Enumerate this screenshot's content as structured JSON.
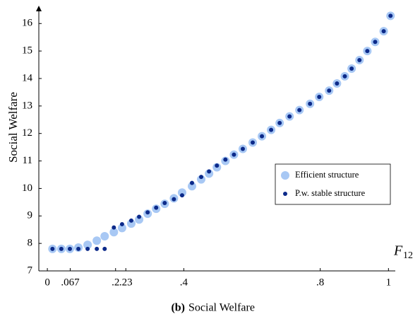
{
  "chart_data": {
    "type": "scatter",
    "x_label": "F",
    "x_label_sub": "12",
    "y_label": "Social Welfare",
    "caption_tag": "(b)",
    "caption": "Social Welfare",
    "xlim": [
      -0.025,
      1.02
    ],
    "ylim": [
      7,
      16.65
    ],
    "xticks": [
      {
        "value": 0,
        "label": "0"
      },
      {
        "value": 0.067,
        "label": ".067"
      },
      {
        "value": 0.2,
        "label": ".2"
      },
      {
        "value": 0.23,
        "label": ".23"
      },
      {
        "value": 0.4,
        "label": ".4"
      },
      {
        "value": 0.8,
        "label": ".8"
      },
      {
        "value": 1,
        "label": "1"
      }
    ],
    "yticks": [
      7,
      8,
      9,
      10,
      11,
      12,
      13,
      14,
      15,
      16
    ],
    "legend": "right",
    "series": [
      {
        "name": "Efficient structure",
        "color": "#a8c8f4",
        "size": 6,
        "x": [
          0.015,
          0.041,
          0.066,
          0.091,
          0.118,
          0.145,
          0.168,
          0.195,
          0.219,
          0.246,
          0.269,
          0.294,
          0.319,
          0.344,
          0.371,
          0.395,
          0.424,
          0.451,
          0.474,
          0.497,
          0.522,
          0.547,
          0.573,
          0.602,
          0.629,
          0.656,
          0.681,
          0.71,
          0.739,
          0.77,
          0.797,
          0.826,
          0.849,
          0.872,
          0.892,
          0.915,
          0.938,
          0.961,
          0.986,
          1.006
        ],
        "values": [
          7.8,
          7.8,
          7.8,
          7.85,
          7.95,
          8.1,
          8.26,
          8.41,
          8.56,
          8.72,
          8.87,
          9.08,
          9.26,
          9.44,
          9.64,
          9.85,
          10.08,
          10.33,
          10.54,
          10.77,
          11.0,
          11.23,
          11.44,
          11.67,
          11.9,
          12.13,
          12.38,
          12.62,
          12.85,
          13.08,
          13.33,
          13.56,
          13.82,
          14.08,
          14.36,
          14.67,
          15.0,
          15.33,
          15.72,
          16.28
        ]
      },
      {
        "name": "P.w. stable structure",
        "color": "#0c2a8a",
        "size": 3,
        "x": [
          0.015,
          0.041,
          0.066,
          0.091,
          0.118,
          0.145,
          0.168,
          0.195,
          0.219,
          0.246,
          0.269,
          0.294,
          0.319,
          0.344,
          0.371,
          0.395,
          0.424,
          0.451,
          0.474,
          0.497,
          0.522,
          0.547,
          0.573,
          0.602,
          0.629,
          0.656,
          0.681,
          0.71,
          0.739,
          0.77,
          0.797,
          0.826,
          0.849,
          0.872,
          0.892,
          0.915,
          0.938,
          0.961,
          0.986,
          1.006
        ],
        "values": [
          7.8,
          7.8,
          7.8,
          7.8,
          7.8,
          7.8,
          7.8,
          8.58,
          8.7,
          8.83,
          8.97,
          9.13,
          9.3,
          9.47,
          9.61,
          9.75,
          10.2,
          10.42,
          10.62,
          10.83,
          11.05,
          11.23,
          11.44,
          11.67,
          11.9,
          12.13,
          12.38,
          12.62,
          12.85,
          13.08,
          13.33,
          13.56,
          13.82,
          14.08,
          14.36,
          14.67,
          15.0,
          15.33,
          15.72,
          16.28
        ]
      }
    ]
  }
}
